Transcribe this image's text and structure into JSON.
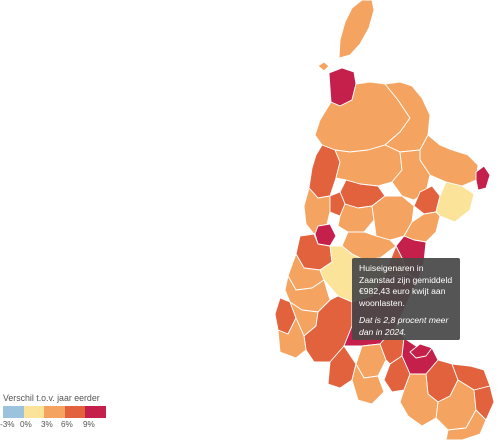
{
  "tooltip": {
    "main": "Huiseigenaren in Zaanstad zijn gemiddeld €982,43 euro kwijt aan woonlasten.",
    "note": "Dat is 2,8 procent meer dan in 2024."
  },
  "legend": {
    "title": "Verschil t.o.v. jaar eerder",
    "ticks": [
      "-3%",
      "0%",
      "3%",
      "6%",
      "9%"
    ],
    "colors": [
      "#9bc3dd",
      "#fce39a",
      "#f4a460",
      "#e2623d",
      "#c4204b"
    ]
  },
  "map_colors": {
    "light_orange": "#f4a460",
    "dark_orange": "#e2623d",
    "crimson": "#c4204b",
    "pale_yellow": "#fce39a",
    "peach": "#f5a86a"
  }
}
